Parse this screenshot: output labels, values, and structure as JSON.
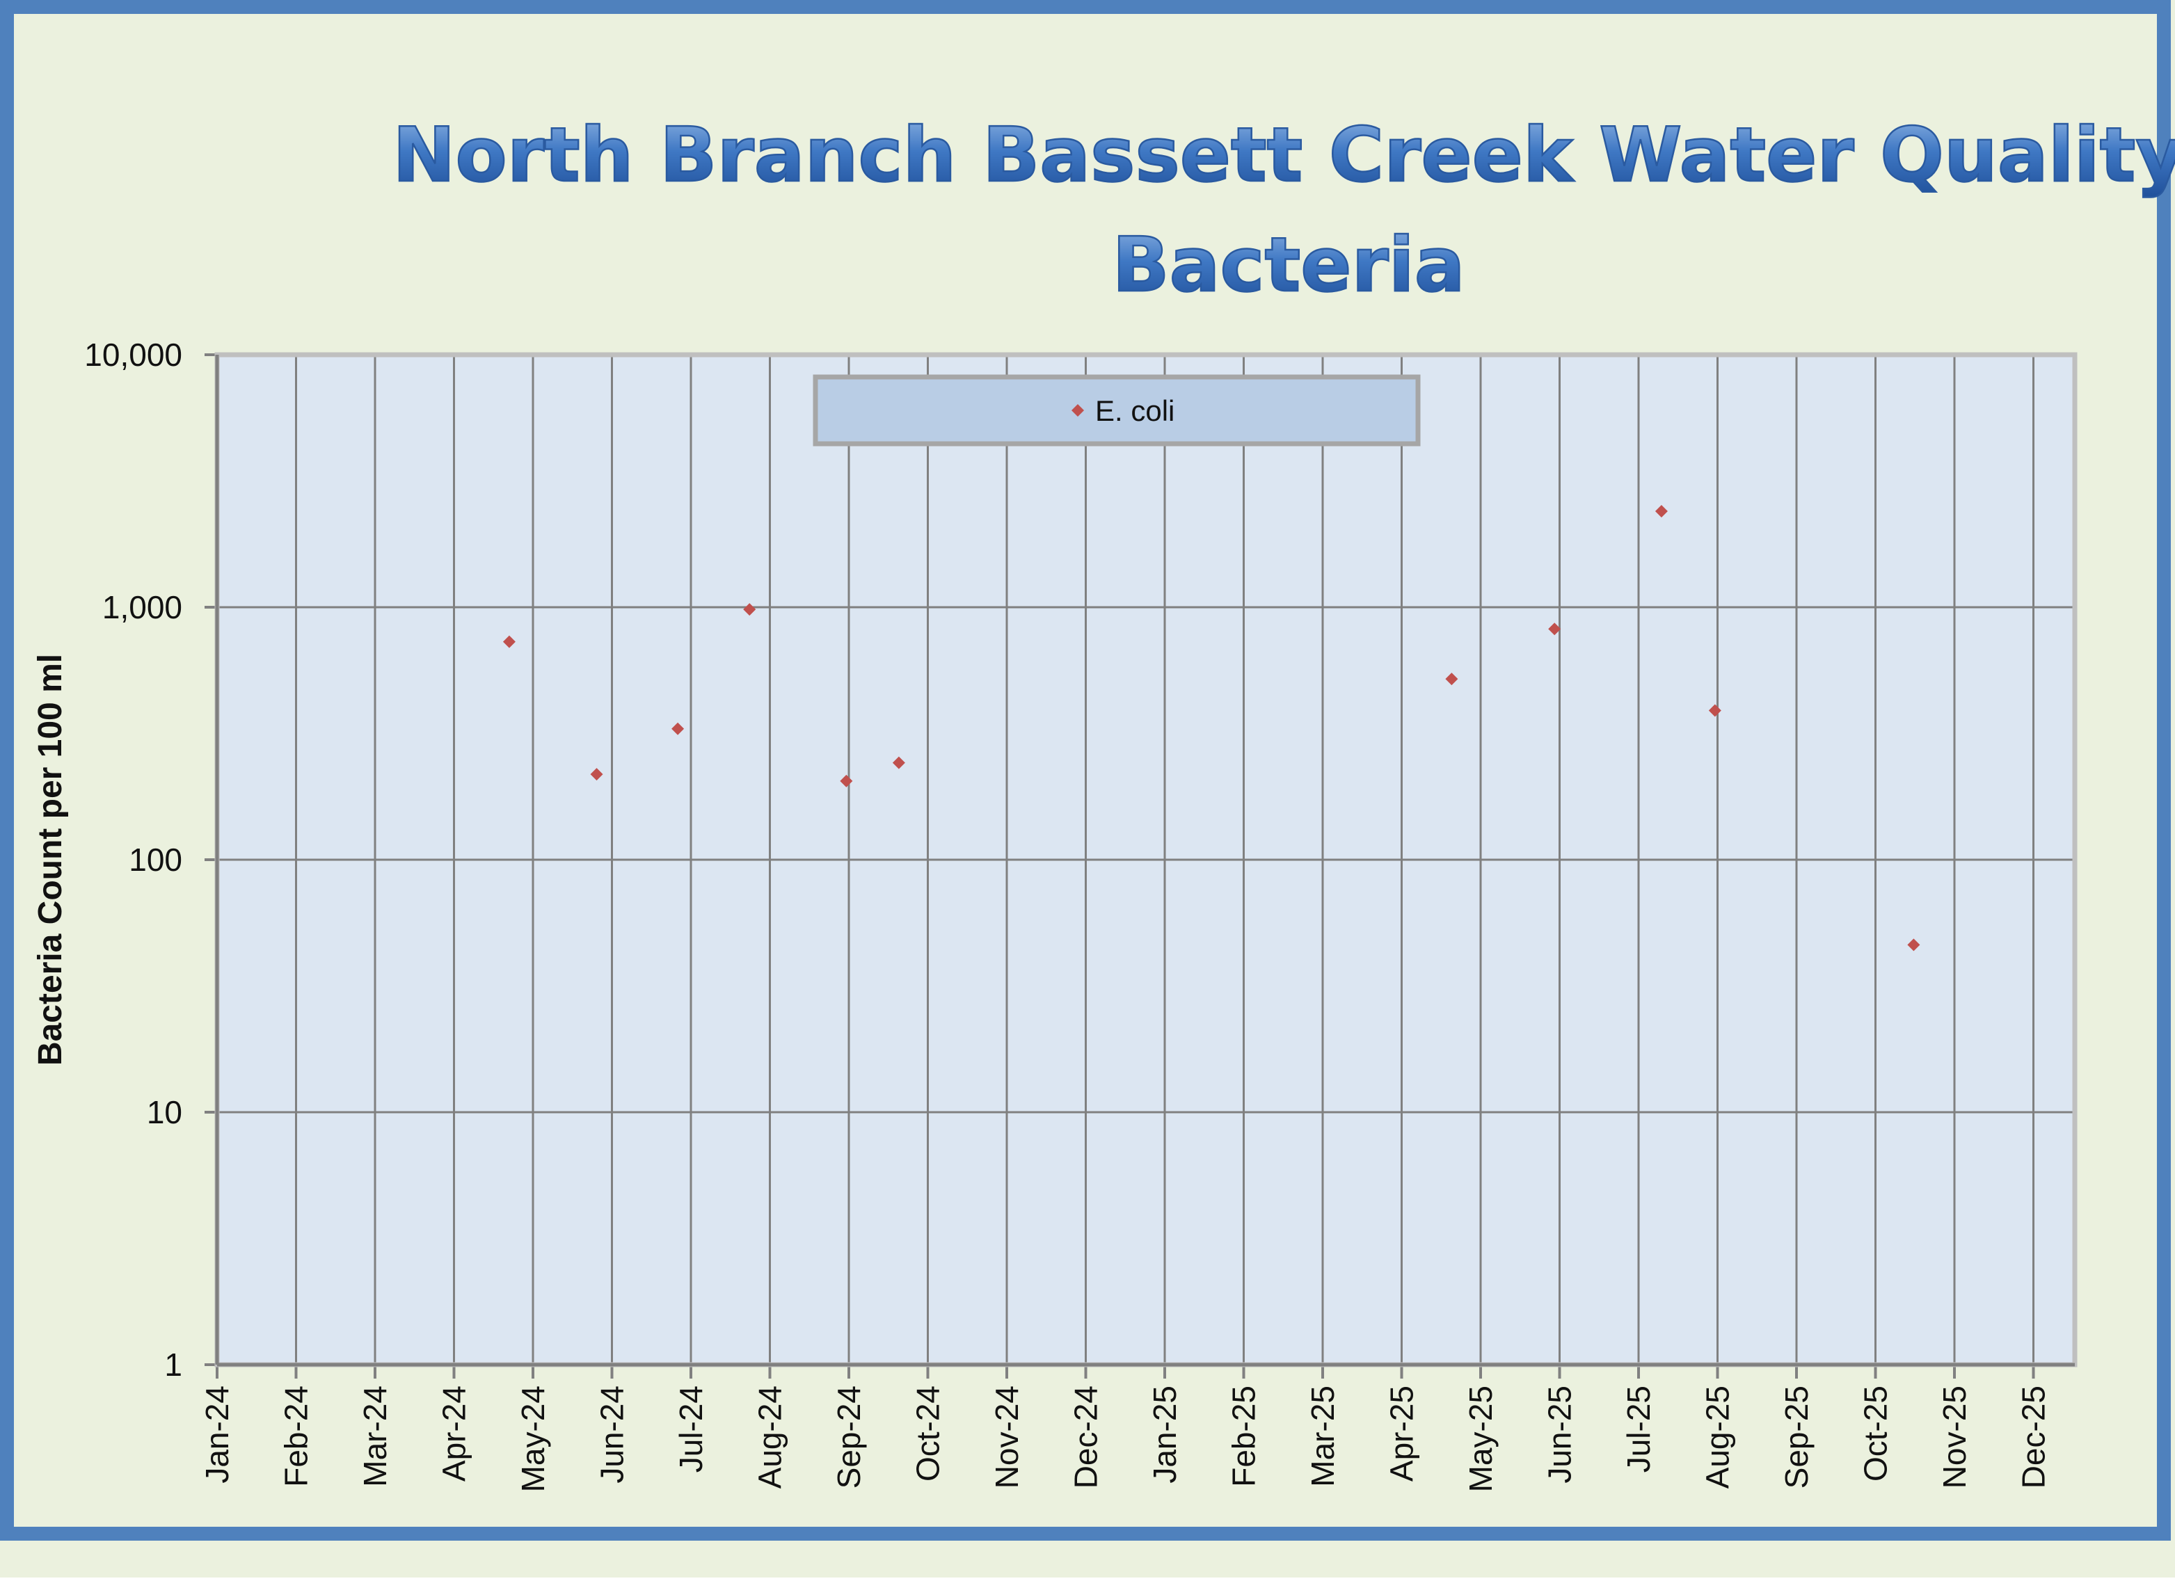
{
  "chart_data": {
    "type": "scatter",
    "title": "North Branch Bassett Creek Water Quality",
    "subtitle": "Bacteria",
    "ylabel": "Bacteria Count per 100 ml",
    "xlabel": "",
    "yscale": "log",
    "ylim": [
      1,
      10000
    ],
    "y_ticks": [
      1,
      10,
      100,
      1000,
      10000
    ],
    "y_tick_labels": [
      "1",
      "10",
      "100",
      "1,000",
      "10,000"
    ],
    "x_ticks": [
      "Jan-24",
      "Feb-24",
      "Mar-24",
      "Apr-24",
      "May-24",
      "Jun-24",
      "Jul-24",
      "Aug-24",
      "Sep-24",
      "Oct-24",
      "Nov-24",
      "Dec-24",
      "Jan-25",
      "Feb-25",
      "Mar-25",
      "Apr-25",
      "May-25",
      "Jun-25",
      "Jul-25",
      "Aug-25",
      "Sep-25",
      "Oct-25",
      "Nov-25",
      "Dec-25"
    ],
    "xlim": [
      "2024-01-01",
      "2025-12-31"
    ],
    "grid": true,
    "legend": {
      "position": "top-center",
      "entries": [
        "E. coli"
      ]
    },
    "series": [
      {
        "name": "E. coli",
        "color": "#c0504d",
        "marker": "diamond",
        "points": [
          {
            "date": "2024-04-22",
            "y": 730
          },
          {
            "date": "2024-05-26",
            "y": 218
          },
          {
            "date": "2024-06-26",
            "y": 330
          },
          {
            "date": "2024-07-24",
            "y": 980
          },
          {
            "date": "2024-08-31",
            "y": 205
          },
          {
            "date": "2024-09-20",
            "y": 242
          },
          {
            "date": "2025-04-20",
            "y": 520
          },
          {
            "date": "2025-05-30",
            "y": 820
          },
          {
            "date": "2025-07-10",
            "y": 2400
          },
          {
            "date": "2025-07-31",
            "y": 390
          },
          {
            "date": "2025-10-16",
            "y": 46
          }
        ]
      }
    ]
  },
  "colors": {
    "frame_border": "#4f81bd",
    "frame_background": "#ebf1de",
    "plot_background": "#dce6f2",
    "plot_border": "#bfbfbf",
    "gridlines": "#808080",
    "title_fill": "#2e6ab8",
    "legend_background": "#b9cde5"
  }
}
